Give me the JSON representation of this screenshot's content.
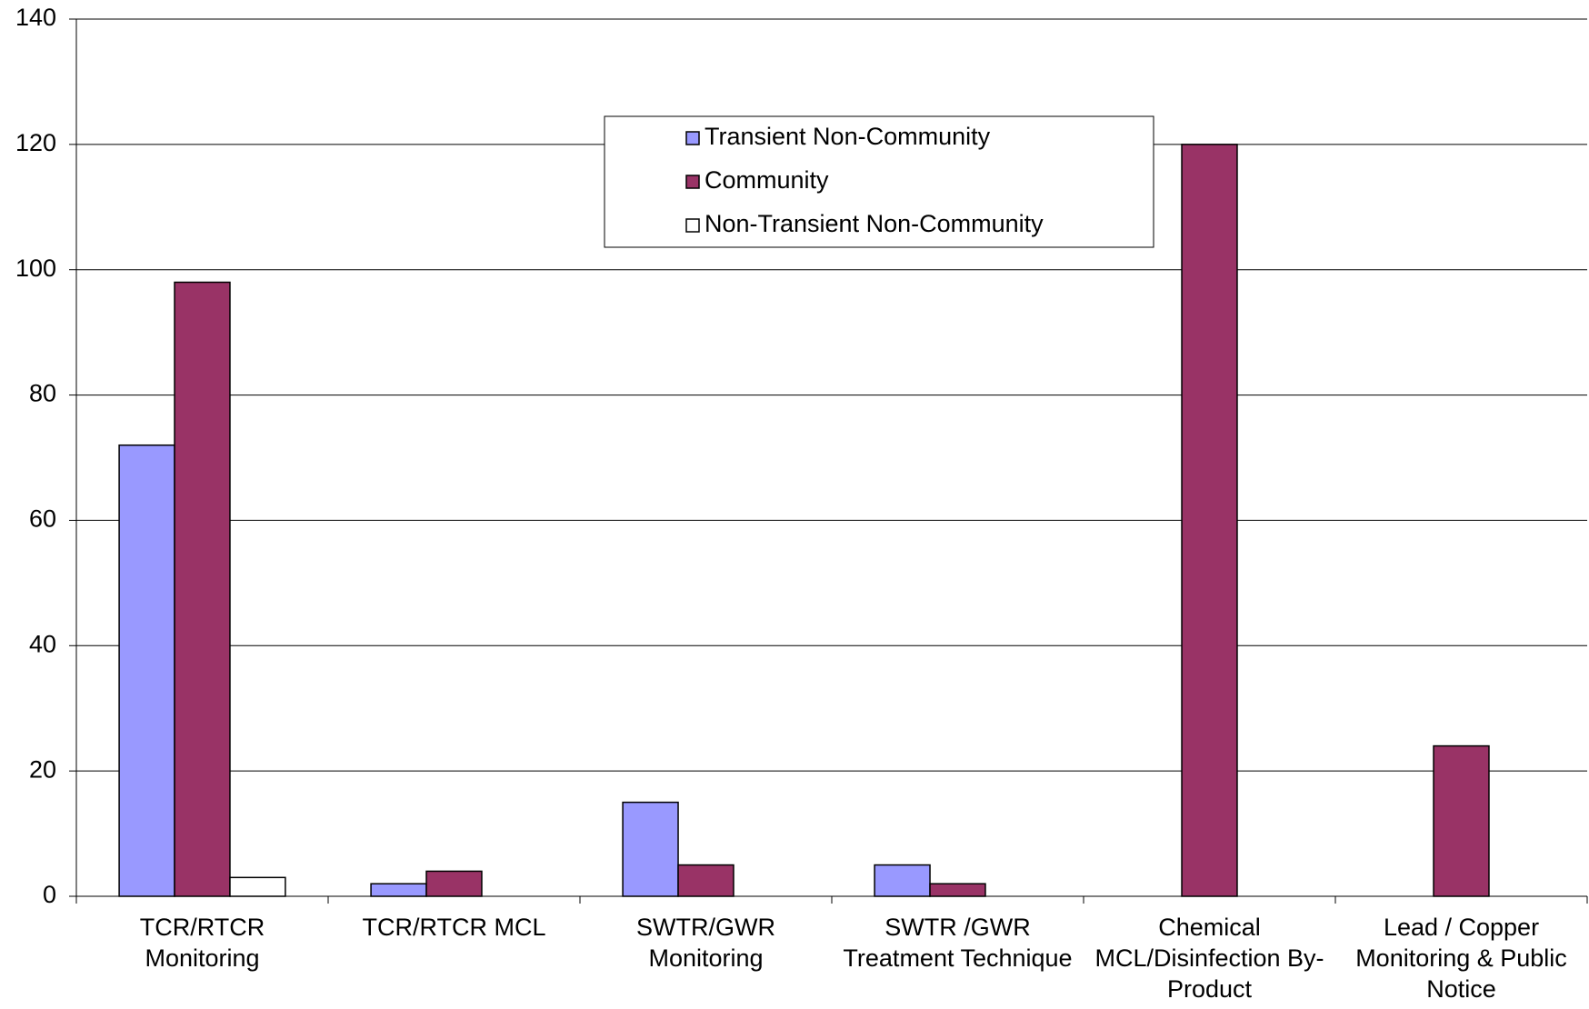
{
  "chart_data": {
    "type": "bar",
    "categories": [
      "TCR/RTCR Monitoring",
      "TCR/RTCR MCL",
      "SWTR/GWR Monitoring",
      "SWTR /GWR Treatment Technique",
      "Chemical MCL/Disinfection By-Product",
      "Lead / Copper Monitoring & Public Notice"
    ],
    "series": [
      {
        "name": "Transient Non-Community",
        "color": "#9999ff",
        "values": [
          72,
          2,
          15,
          5,
          0,
          0
        ]
      },
      {
        "name": "Community",
        "color": "#993366",
        "values": [
          98,
          4,
          5,
          2,
          120,
          24
        ]
      },
      {
        "name": "Non-Transient Non-Community",
        "color": "#ffffff",
        "values": [
          3,
          0,
          0,
          0,
          0,
          0
        ]
      }
    ],
    "ylim": [
      0,
      140
    ],
    "yticks": [
      0,
      20,
      40,
      60,
      80,
      100,
      120,
      140
    ],
    "grid": true,
    "legend": "top"
  }
}
